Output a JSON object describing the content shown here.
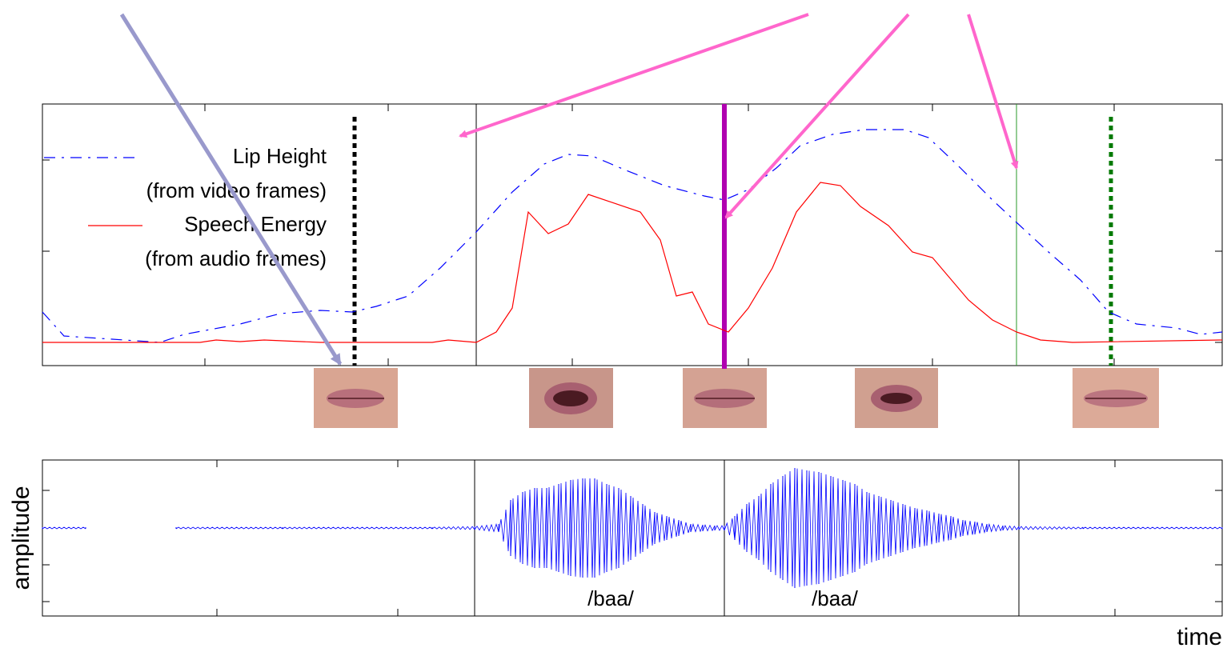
{
  "chart_data": [
    {
      "type": "line",
      "xlim": [
        0,
        1474
      ],
      "ylim": [
        0,
        327
      ],
      "xticks": [
        203,
        432,
        662,
        882,
        1112,
        1339
      ],
      "yticks": [
        29,
        143,
        257
      ],
      "series": [
        {
          "name": "Lip Height",
          "source": "(from video frames)",
          "color": "#0000ff",
          "dash": "dashdot",
          "x": [
            0,
            27,
            147,
            177,
            247,
            297,
            347,
            387,
            417,
            457,
            497,
            542,
            587,
            627,
            657,
            687,
            727,
            777,
            827,
            852,
            882,
            917,
            947,
            987,
            1027,
            1077,
            1107,
            1147,
            1187,
            1217,
            1257,
            1297,
            1332,
            1367,
            1417,
            1447,
            1474
          ],
          "values": [
            67,
            37,
            29,
            39,
            52,
            65,
            69,
            67,
            74,
            87,
            122,
            167,
            217,
            252,
            264,
            262,
            245,
            225,
            212,
            207,
            220,
            247,
            275,
            289,
            295,
            295,
            285,
            247,
            207,
            179,
            142,
            107,
            67,
            52,
            47,
            39,
            42
          ]
        },
        {
          "name": "Speech Energy",
          "source": "(from audio frames)",
          "color": "#ff0000",
          "dash": "solid",
          "x": [
            0,
            197,
            217,
            247,
            277,
            347,
            487,
            507,
            542,
            567,
            587,
            607,
            632,
            657,
            682,
            747,
            772,
            792,
            812,
            832,
            857,
            882,
            912,
            942,
            972,
            997,
            1022,
            1057,
            1087,
            1112,
            1157,
            1187,
            1217,
            1247,
            1287,
            1474
          ],
          "values": [
            29,
            29,
            32,
            30,
            32,
            29,
            29,
            32,
            29,
            42,
            72,
            192,
            165,
            177,
            214,
            192,
            157,
            87,
            92,
            52,
            42,
            72,
            122,
            192,
            229,
            225,
            199,
            175,
            142,
            135,
            82,
            57,
            42,
            32,
            29,
            32
          ]
        }
      ],
      "markers": [
        {
          "x": 390,
          "color": "#000000",
          "style": "dotted"
        },
        {
          "x": 542,
          "color": "#000000",
          "style": "thin"
        },
        {
          "x": 852,
          "color": "#b000b0",
          "style": "thick"
        },
        {
          "x": 1217,
          "color": "#2a9a2a",
          "style": "thin"
        },
        {
          "x": 1335,
          "color": "#007a00",
          "style": "dotted"
        }
      ]
    },
    {
      "type": "waveform",
      "xlabel": "time",
      "ylabel": "amplitude",
      "xlim": [
        0,
        1474
      ],
      "ylim": [
        -110,
        85
      ],
      "xticks": [
        218,
        444,
        1340
      ],
      "yticks": [
        -92,
        -46,
        47
      ],
      "color": "#0000ff",
      "x": [
        0,
        54,
        110,
        167,
        300,
        487,
        540,
        570,
        585,
        600,
        615,
        630,
        645,
        660,
        675,
        690,
        705,
        720,
        735,
        750,
        765,
        780,
        795,
        810,
        825,
        840,
        852,
        865,
        880,
        895,
        910,
        925,
        940,
        955,
        970,
        985,
        1000,
        1015,
        1030,
        1045,
        1060,
        1075,
        1090,
        1105,
        1120,
        1135,
        1150,
        1165,
        1180,
        1200,
        1220,
        1300,
        1474
      ],
      "values": [
        1,
        1,
        null,
        1,
        1,
        1,
        2,
        5,
        35,
        45,
        50,
        50,
        55,
        60,
        62,
        62,
        55,
        50,
        40,
        30,
        20,
        15,
        10,
        5,
        4,
        3,
        3,
        15,
        30,
        40,
        55,
        65,
        75,
        72,
        70,
        65,
        60,
        55,
        45,
        40,
        35,
        30,
        25,
        22,
        18,
        15,
        10,
        8,
        5,
        3,
        2,
        1,
        1
      ],
      "markers": [
        {
          "x": 540,
          "color": "#000000",
          "style": "thin"
        },
        {
          "x": 852,
          "color": "#000000",
          "style": "thin"
        },
        {
          "x": 1220,
          "color": "#000000",
          "style": "thin"
        }
      ],
      "annotations": [
        "/baa/",
        "/baa/"
      ]
    }
  ]
}
